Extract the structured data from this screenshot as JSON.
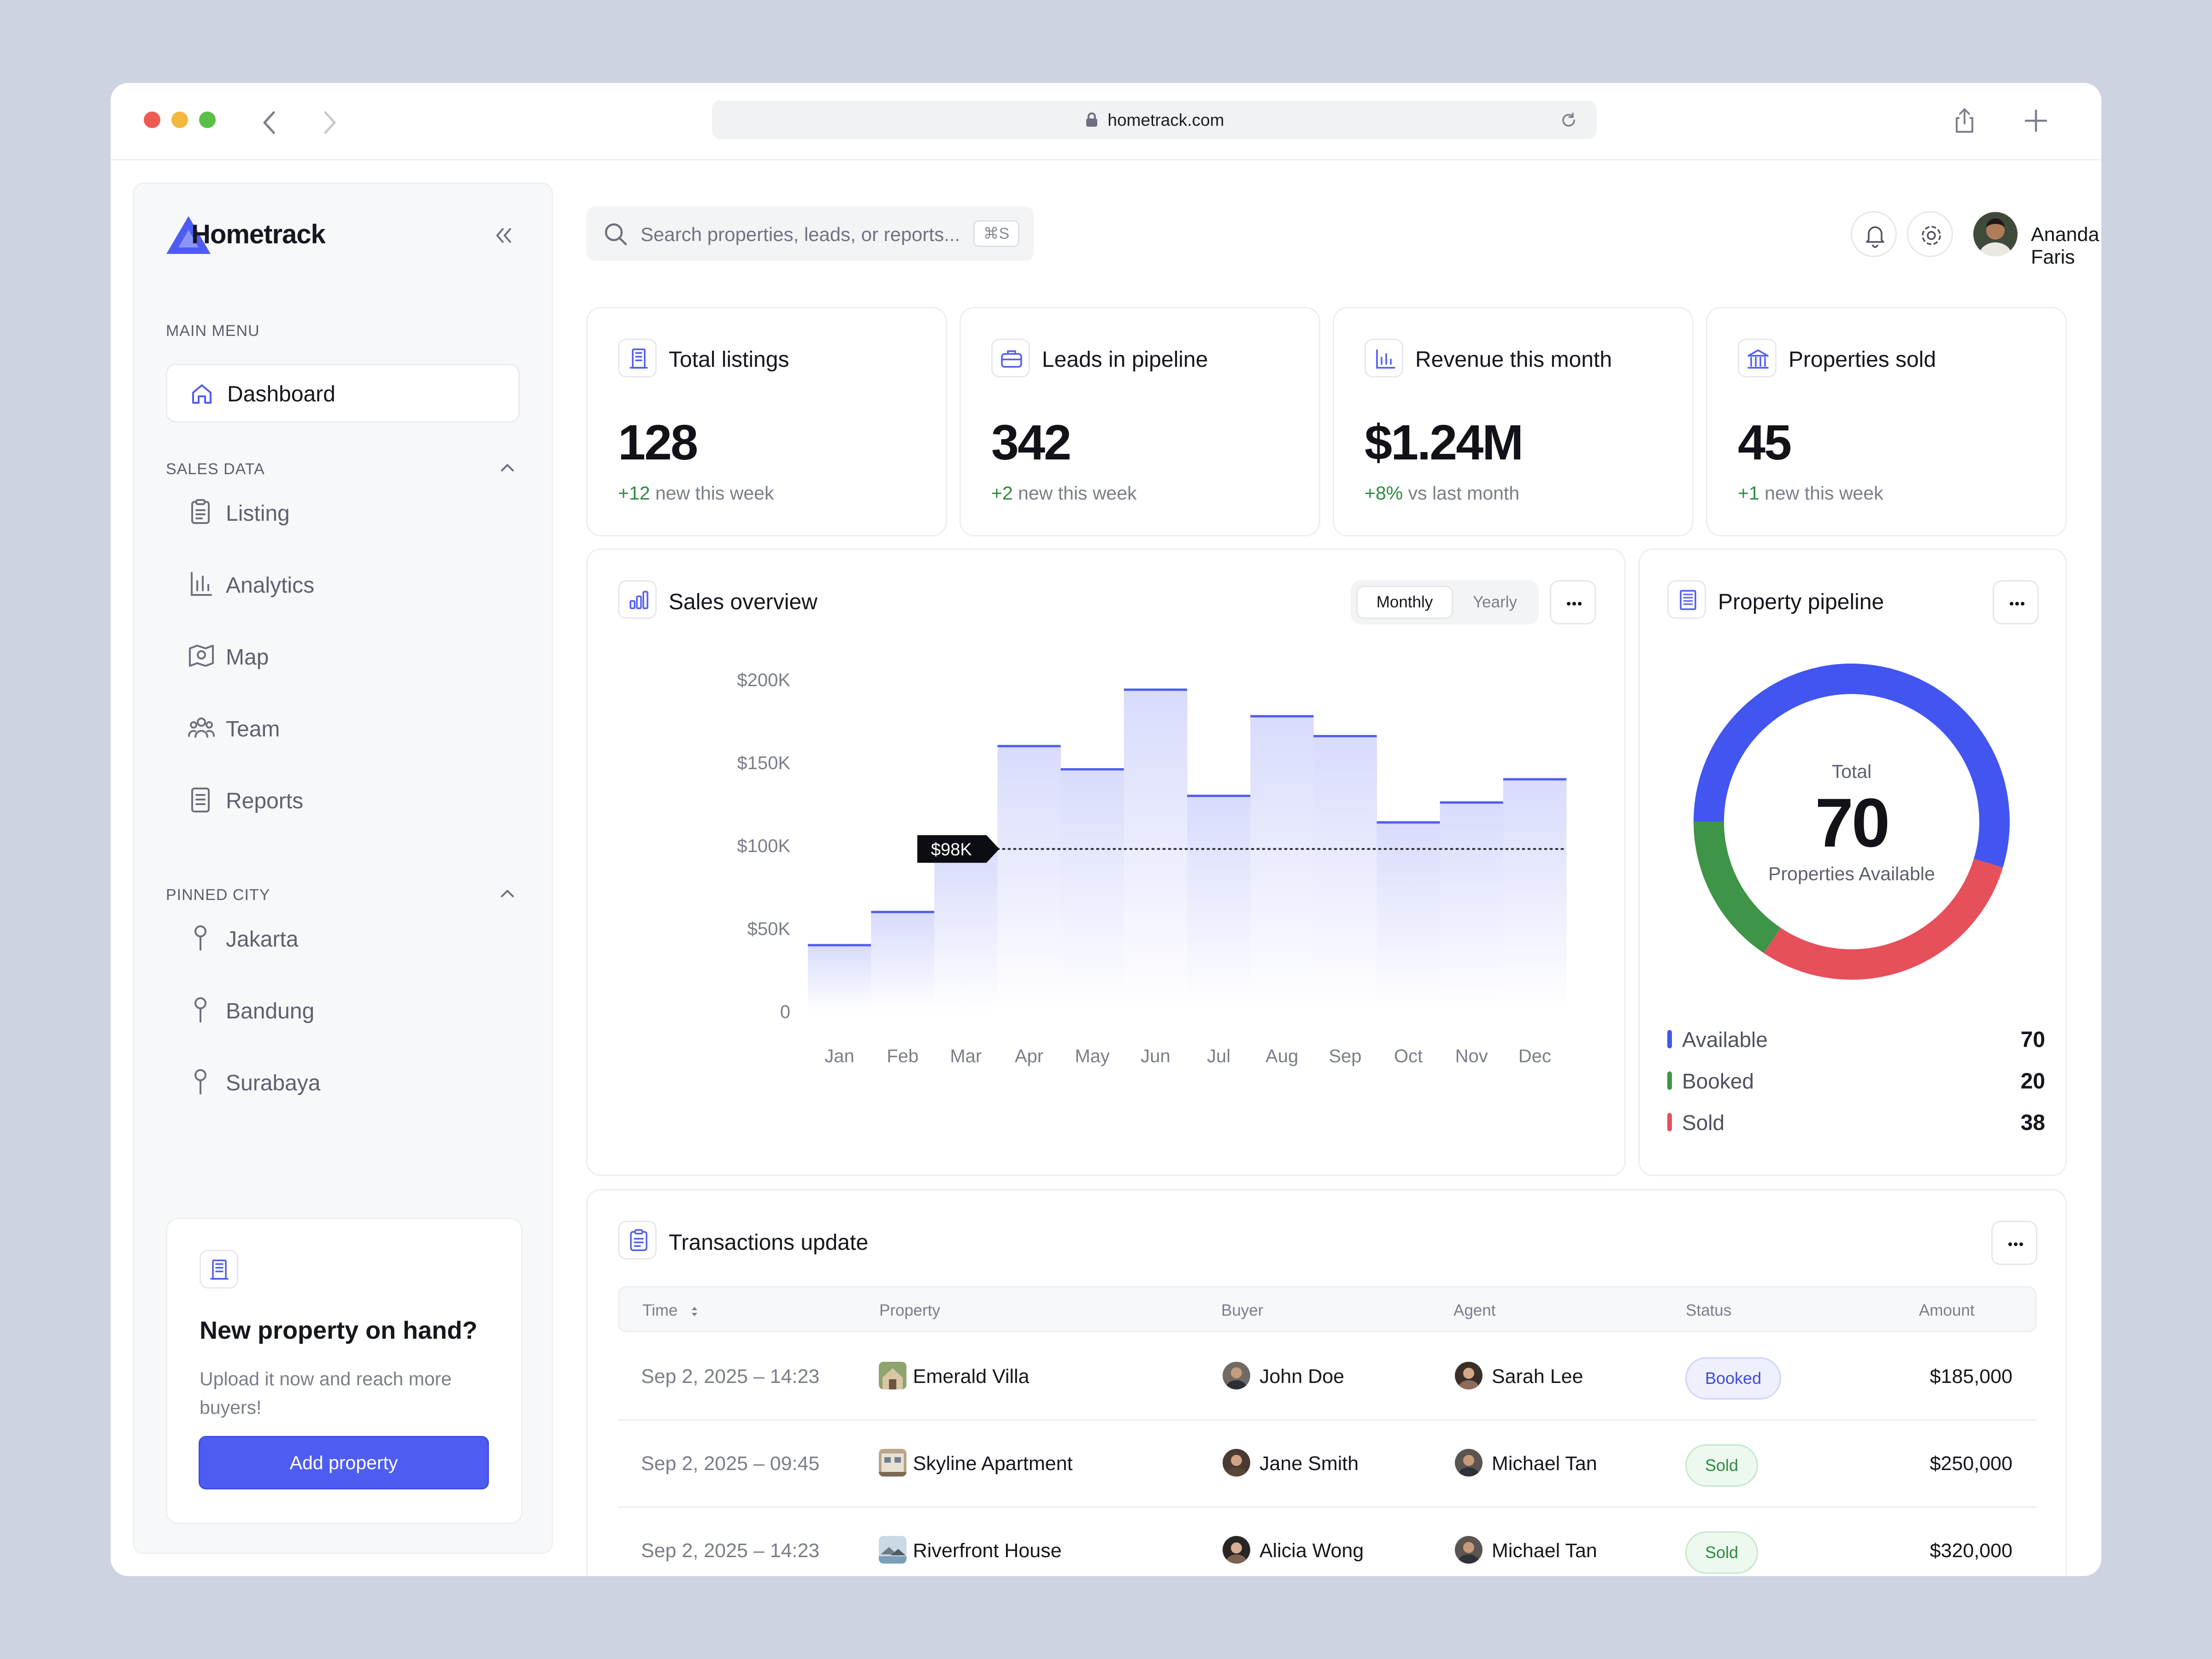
{
  "browser": {
    "url": "hometrack.com",
    "dot_colors": [
      "#ee5b52",
      "#f4b73f",
      "#5cc047"
    ]
  },
  "brand": {
    "name": "Hometrack",
    "accent": "#4f5cf2"
  },
  "sidebar": {
    "main_menu_label": "MAIN MENU",
    "dashboard_label": "Dashboard",
    "sales_data_label": "SALES DATA",
    "sales_items": [
      {
        "label": "Listing",
        "icon": "clipboard-icon"
      },
      {
        "label": "Analytics",
        "icon": "bar-chart-icon"
      },
      {
        "label": "Map",
        "icon": "map-icon"
      },
      {
        "label": "Team",
        "icon": "team-icon"
      },
      {
        "label": "Reports",
        "icon": "document-icon"
      }
    ],
    "pinned_city_label": "PINNED CITY",
    "cities": [
      "Jakarta",
      "Bandung",
      "Surabaya"
    ],
    "upload_card": {
      "title": "New property on hand?",
      "description": "Upload it now and reach more buyers!",
      "button_label": "Add property"
    }
  },
  "header": {
    "search_placeholder": "Search properties, leads, or reports...",
    "search_shortcut": "⌘S",
    "user_name": "Ananda Faris"
  },
  "stats": [
    {
      "title": "Total listings",
      "value": "128",
      "delta": "+12",
      "note": " new this week",
      "icon": "building-icon"
    },
    {
      "title": "Leads in pipeline",
      "value": "342",
      "delta": "+2",
      "note": " new this week",
      "icon": "briefcase-icon"
    },
    {
      "title": "Revenue this month",
      "value": "$1.24M",
      "delta": "+8%",
      "note": " vs last month",
      "icon": "chart-icon"
    },
    {
      "title": "Properties sold",
      "value": "45",
      "delta": "+1",
      "note": " new this week",
      "icon": "bank-icon"
    }
  ],
  "sales_overview": {
    "title": "Sales overview",
    "toggle": {
      "active": "Monthly",
      "inactive": "Yearly"
    },
    "more_label": "···"
  },
  "chart_data": {
    "type": "bar",
    "categories": [
      "Jan",
      "Feb",
      "Mar",
      "Apr",
      "May",
      "Jun",
      "Jul",
      "Aug",
      "Sep",
      "Oct",
      "Nov",
      "Dec"
    ],
    "values": [
      40000,
      60000,
      98000,
      160000,
      146000,
      194000,
      130000,
      178000,
      166000,
      114000,
      126000,
      140000
    ],
    "y_ticks": [
      "$200K",
      "$150K",
      "$100K",
      "$50K",
      "0"
    ],
    "ylim": [
      0,
      200000
    ],
    "highlight": {
      "category": "Mar",
      "label": "$98K",
      "value": 98000
    },
    "bar_color": "#4f5cf2"
  },
  "pipeline": {
    "title": "Property pipeline",
    "center_label": "Total",
    "center_value": "70",
    "center_sub": "Properties Available",
    "chart_data": {
      "type": "pie",
      "segments": [
        {
          "label": "Available",
          "value": 70,
          "color": "#4255f0"
        },
        {
          "label": "Booked",
          "value": 20,
          "color": "#3e9447"
        },
        {
          "label": "Sold",
          "value": 38,
          "color": "#e5505a"
        }
      ]
    }
  },
  "transactions": {
    "title": "Transactions update",
    "columns": [
      "Time",
      "Property",
      "Buyer",
      "Agent",
      "Status",
      "Amount"
    ],
    "rows": [
      {
        "time": "Sep 2, 2025 – 14:23",
        "property": "Emerald Villa",
        "buyer": "John Doe",
        "agent": "Sarah Lee",
        "status": "Booked",
        "amount": "$185,000"
      },
      {
        "time": "Sep 2, 2025 – 09:45",
        "property": "Skyline Apartment",
        "buyer": "Jane Smith",
        "agent": "Michael Tan",
        "status": "Sold",
        "amount": "$250,000"
      },
      {
        "time": "Sep 2, 2025 – 14:23",
        "property": "Riverfront House",
        "buyer": "Alicia Wong",
        "agent": "Michael Tan",
        "status": "Sold",
        "amount": "$320,000"
      }
    ]
  }
}
